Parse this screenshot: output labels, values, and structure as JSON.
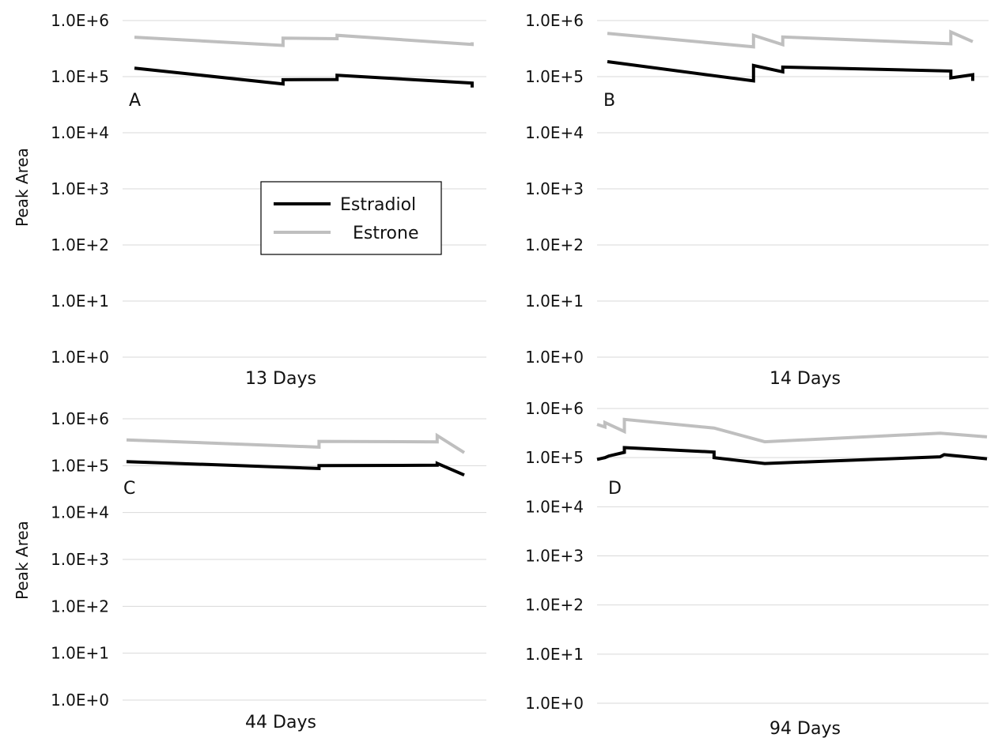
{
  "colors": {
    "estradiol": "#000000",
    "estrone": "#bfbfbf",
    "grid": "#d9d9d9"
  },
  "legend": {
    "entries": [
      "Estradiol",
      "Estrone"
    ],
    "placement": "panel A, center"
  },
  "chart_data": [
    {
      "panel": "A",
      "type": "line",
      "xlabel": "13 Days",
      "ylabel": "Peak Area",
      "yscale": "log",
      "ylim": [
        1,
        1000000
      ],
      "yticks": [
        "1.0E+0",
        "1.0E+1",
        "1.0E+2",
        "1.0E+3",
        "1.0E+4",
        "1.0E+5",
        "1.0E+6"
      ],
      "grid": true,
      "xlim": [
        0,
        100
      ],
      "series": [
        {
          "name": "Estradiol",
          "color": "#000000",
          "x": [
            0,
            44,
            44,
            60,
            60,
            100,
            100
          ],
          "y": [
            142000,
            74000,
            88000,
            89000,
            106000,
            77000,
            64000
          ]
        },
        {
          "name": "Estrone",
          "color": "#bfbfbf",
          "x": [
            0,
            44,
            44,
            60,
            60,
            100,
            100
          ],
          "y": [
            505000,
            360000,
            485000,
            475000,
            545000,
            375000,
            410000
          ]
        }
      ]
    },
    {
      "panel": "B",
      "type": "line",
      "xlabel": "14 Days",
      "ylabel": "",
      "yscale": "log",
      "ylim": [
        1,
        1000000
      ],
      "yticks": [
        "1.0E+0",
        "1.0E+1",
        "1.0E+2",
        "1.0E+3",
        "1.0E+4",
        "1.0E+5",
        "1.0E+6"
      ],
      "grid": true,
      "xlim": [
        0,
        100
      ],
      "series": [
        {
          "name": "Estradiol",
          "color": "#000000",
          "x": [
            0,
            40,
            40,
            48,
            48,
            94,
            94,
            100,
            100
          ],
          "y": [
            185000,
            84000,
            158000,
            122000,
            148000,
            126000,
            95000,
            108000,
            84000
          ]
        },
        {
          "name": "Estrone",
          "color": "#bfbfbf",
          "x": [
            0,
            40,
            40,
            48,
            48,
            94,
            94,
            100
          ],
          "y": [
            590000,
            340000,
            545000,
            372000,
            510000,
            385000,
            625000,
            420000
          ]
        }
      ]
    },
    {
      "panel": "C",
      "type": "line",
      "xlabel": "44 Days",
      "ylabel": "Peak Area",
      "yscale": "log",
      "ylim": [
        1,
        1000000
      ],
      "yticks": [
        "1.0E+0",
        "1.0E+1",
        "1.0E+2",
        "1.0E+3",
        "1.0E+4",
        "1.0E+5",
        "1.0E+6"
      ],
      "grid": true,
      "xlim": [
        0,
        100
      ],
      "series": [
        {
          "name": "Estradiol",
          "color": "#000000",
          "x": [
            0,
            57,
            57,
            92,
            92,
            100
          ],
          "y": [
            122000,
            87000,
            100000,
            102000,
            112000,
            63000
          ]
        },
        {
          "name": "Estrone",
          "color": "#bfbfbf",
          "x": [
            0,
            57,
            57,
            92,
            92,
            100
          ],
          "y": [
            355000,
            248000,
            330000,
            322000,
            440000,
            190000
          ]
        }
      ]
    },
    {
      "panel": "D",
      "type": "line",
      "xlabel": "94 Days",
      "ylabel": "",
      "yscale": "log",
      "ylim": [
        1,
        1000000
      ],
      "yticks": [
        "1.0E+0",
        "1.0E+1",
        "1.0E+2",
        "1.0E+3",
        "1.0E+4",
        "1.0E+5",
        "1.0E+6"
      ],
      "grid": true,
      "xlim": [
        0,
        100
      ],
      "series": [
        {
          "name": "Estradiol",
          "color": "#000000",
          "x": [
            0,
            2,
            3,
            7,
            7,
            30,
            30,
            43,
            88,
            89,
            100
          ],
          "y": [
            92000,
            100000,
            108000,
            128000,
            160000,
            130000,
            100000,
            76000,
            104000,
            115000,
            95000
          ]
        },
        {
          "name": "Estrone",
          "color": "#bfbfbf",
          "x": [
            0,
            2,
            2,
            7,
            7,
            30,
            43,
            88,
            100
          ],
          "y": [
            475000,
            420000,
            520000,
            340000,
            600000,
            400000,
            210000,
            315000,
            265000
          ]
        }
      ]
    }
  ]
}
